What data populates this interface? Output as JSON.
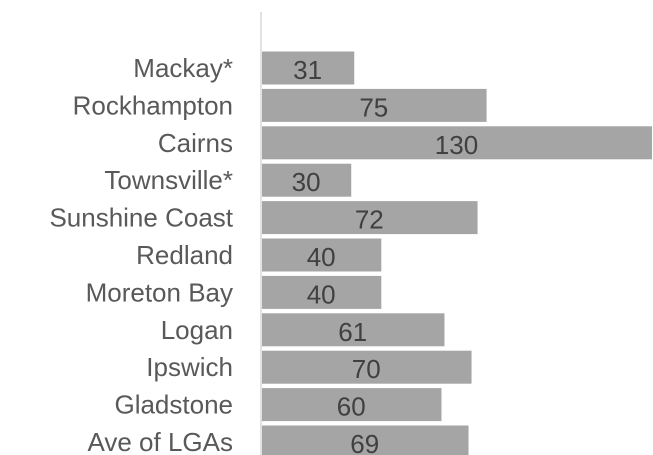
{
  "chart_data": {
    "type": "bar",
    "orientation": "horizontal",
    "categories": [
      "Mackay*",
      "Rockhampton",
      "Cairns",
      "Townsville*",
      "Sunshine Coast",
      "Redland",
      "Moreton Bay",
      "Logan",
      "Ipswich",
      "Gladstone",
      "Ave of LGAs"
    ],
    "values": [
      31,
      75,
      130,
      30,
      72,
      40,
      40,
      61,
      70,
      60,
      69
    ],
    "data_labels": [
      "31",
      "75",
      "130",
      "30",
      "72",
      "40",
      "40",
      "61",
      "70",
      "60",
      "69"
    ],
    "title": "",
    "xlabel": "",
    "ylabel": "",
    "xlim": [
      0,
      130
    ],
    "grid": false,
    "legend": "none",
    "colors": {
      "bar": "#a5a5a5",
      "axis": "#d9d9d9",
      "category_text": "#595959",
      "value_text": "#404040"
    }
  }
}
